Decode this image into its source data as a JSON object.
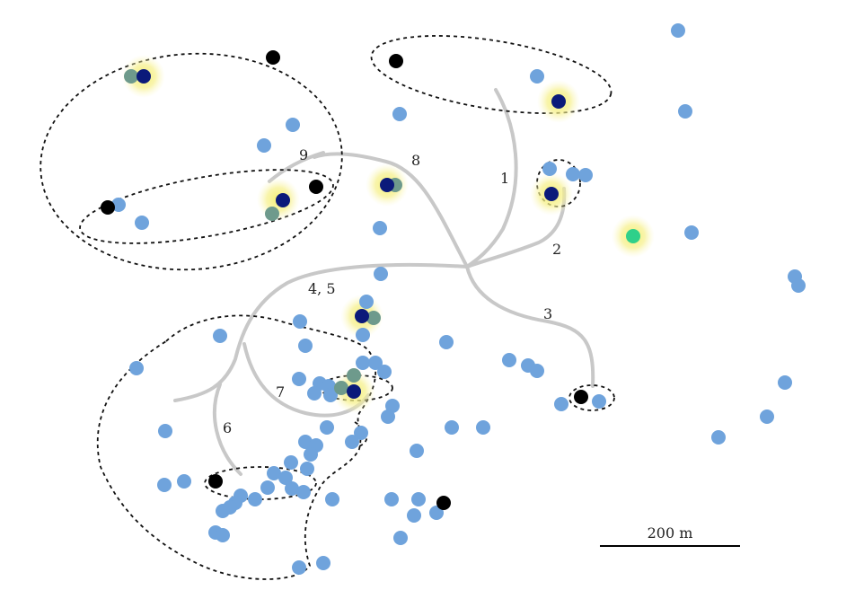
{
  "colors": {
    "point": "#6fa3dc",
    "point_overlap": "#6e9a8c",
    "highlight": "#0b1a7a",
    "glow": "#f3ee6a",
    "black": "#000000",
    "green": "#2fd08a",
    "route": "#c8c8c8"
  },
  "routes": [
    {
      "id": "1",
      "label": "1"
    },
    {
      "id": "2",
      "label": "2"
    },
    {
      "id": "3",
      "label": "3"
    },
    {
      "id": "4-5",
      "label": "4, 5"
    },
    {
      "id": "6",
      "label": "6"
    },
    {
      "id": "7",
      "label": "7"
    },
    {
      "id": "8",
      "label": "8"
    },
    {
      "id": "9",
      "label": "9"
    }
  ],
  "scale": {
    "label": "200 m"
  }
}
